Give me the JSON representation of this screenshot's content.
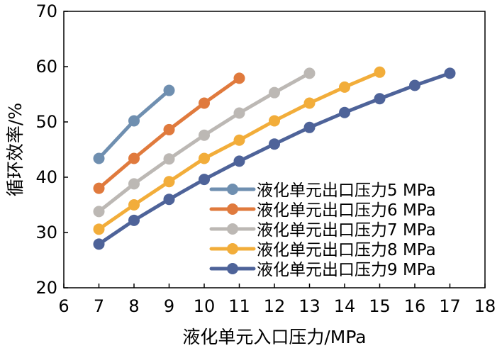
{
  "chart_data": {
    "type": "line",
    "title": "",
    "xlabel": "液化单元入口压力/MPa",
    "ylabel": "循环效率/%",
    "xlim": [
      6,
      18
    ],
    "ylim": [
      20,
      70
    ],
    "xticks": [
      6,
      7,
      8,
      9,
      10,
      11,
      12,
      13,
      14,
      15,
      16,
      17,
      18
    ],
    "yticks": [
      20,
      30,
      40,
      50,
      60,
      70
    ],
    "grid": false,
    "legend_position": "bottom-right",
    "series": [
      {
        "name": "液化单元出口压力5 MPa",
        "color": "#6f8fb0",
        "x": [
          7,
          8,
          9
        ],
        "y": [
          43.4,
          50.2,
          55.7
        ]
      },
      {
        "name": "液化单元出口压力6 MPa",
        "color": "#e07a3d",
        "x": [
          7,
          8,
          9,
          10,
          11
        ],
        "y": [
          38.0,
          43.4,
          48.6,
          53.4,
          57.9
        ]
      },
      {
        "name": "液化单元出口压力7 MPa",
        "color": "#bcb8b4",
        "x": [
          7,
          8,
          9,
          10,
          11,
          12,
          13
        ],
        "y": [
          33.8,
          38.8,
          43.3,
          47.6,
          51.6,
          55.3,
          58.8
        ]
      },
      {
        "name": "液化单元出口压力8 MPa",
        "color": "#f2ad3a",
        "x": [
          7,
          8,
          9,
          10,
          11,
          12,
          13,
          14,
          15
        ],
        "y": [
          30.6,
          35.0,
          39.2,
          43.4,
          46.7,
          50.2,
          53.4,
          56.3,
          59.0
        ]
      },
      {
        "name": "液化单元出口压力9 MPa",
        "color": "#4e6399",
        "x": [
          7,
          8,
          9,
          10,
          11,
          12,
          13,
          14,
          15,
          16,
          17
        ],
        "y": [
          27.9,
          32.2,
          36.0,
          39.6,
          42.9,
          46.0,
          49.0,
          51.7,
          54.2,
          56.6,
          58.8
        ]
      }
    ]
  }
}
